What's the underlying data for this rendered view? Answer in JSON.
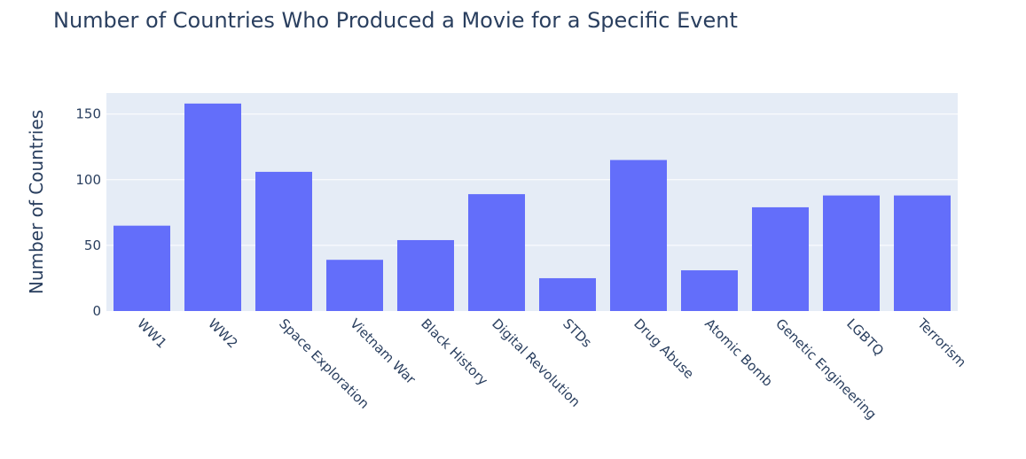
{
  "chart_data": {
    "type": "bar",
    "title": "Number of Countries Who Produced a Movie for a Specific Event",
    "xlabel": "",
    "ylabel": "Number of Countries",
    "categories": [
      "WW1",
      "WW2",
      "Space Exploration",
      "Vietnam War",
      "Black History",
      "Digital Revolution",
      "STDs",
      "Drug Abuse",
      "Atomic Bomb",
      "Genetic Engineering",
      "LGBTQ",
      "Terrorism"
    ],
    "values": [
      65,
      158,
      106,
      39,
      54,
      89,
      25,
      115,
      31,
      79,
      88,
      88
    ],
    "ylim": [
      0,
      166
    ],
    "yticks": [
      0,
      50,
      100,
      150
    ],
    "grid": true,
    "bar_color": "#636efa",
    "plot_bg": "#e5ecf6"
  }
}
